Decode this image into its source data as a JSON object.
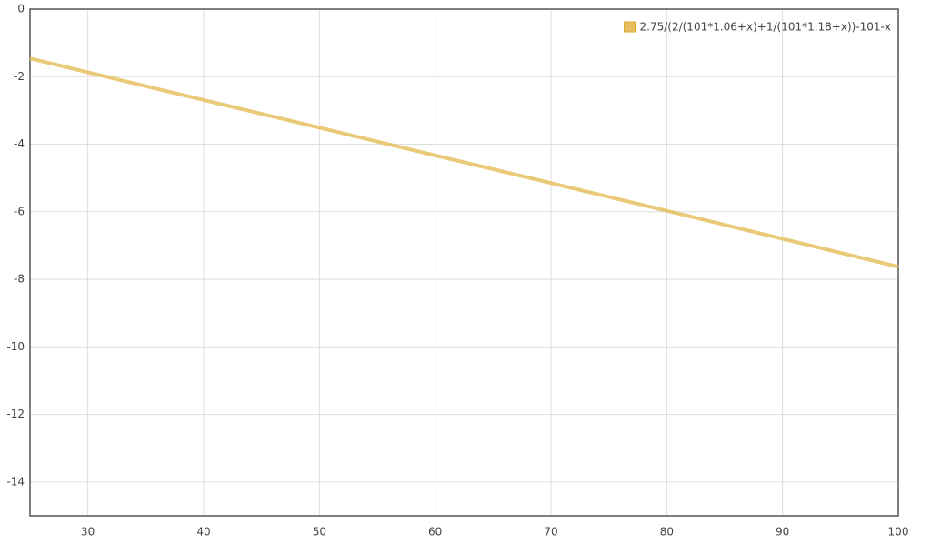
{
  "chart_data": {
    "type": "line",
    "series": [
      {
        "name": "2.75/(2/(101*1.06+x)+1/(101*1.18+x))-101-x",
        "color": "#e6c062",
        "x": [
          25,
          30,
          40,
          50,
          60,
          70,
          75,
          80,
          90,
          100
        ],
        "values": [
          -1.46,
          -1.87,
          -2.69,
          -3.51,
          -4.33,
          -5.15,
          -5.56,
          -5.97,
          -6.8,
          -7.63
        ]
      }
    ],
    "xlim": [
      25,
      100
    ],
    "xticks": [
      30,
      40,
      50,
      60,
      70,
      80,
      90,
      100
    ],
    "ylim": [
      -15,
      0
    ],
    "yticks": [
      0,
      -2,
      -4,
      -6,
      -8,
      -10,
      -12,
      -14
    ],
    "grid": true,
    "legend": "top-right"
  }
}
